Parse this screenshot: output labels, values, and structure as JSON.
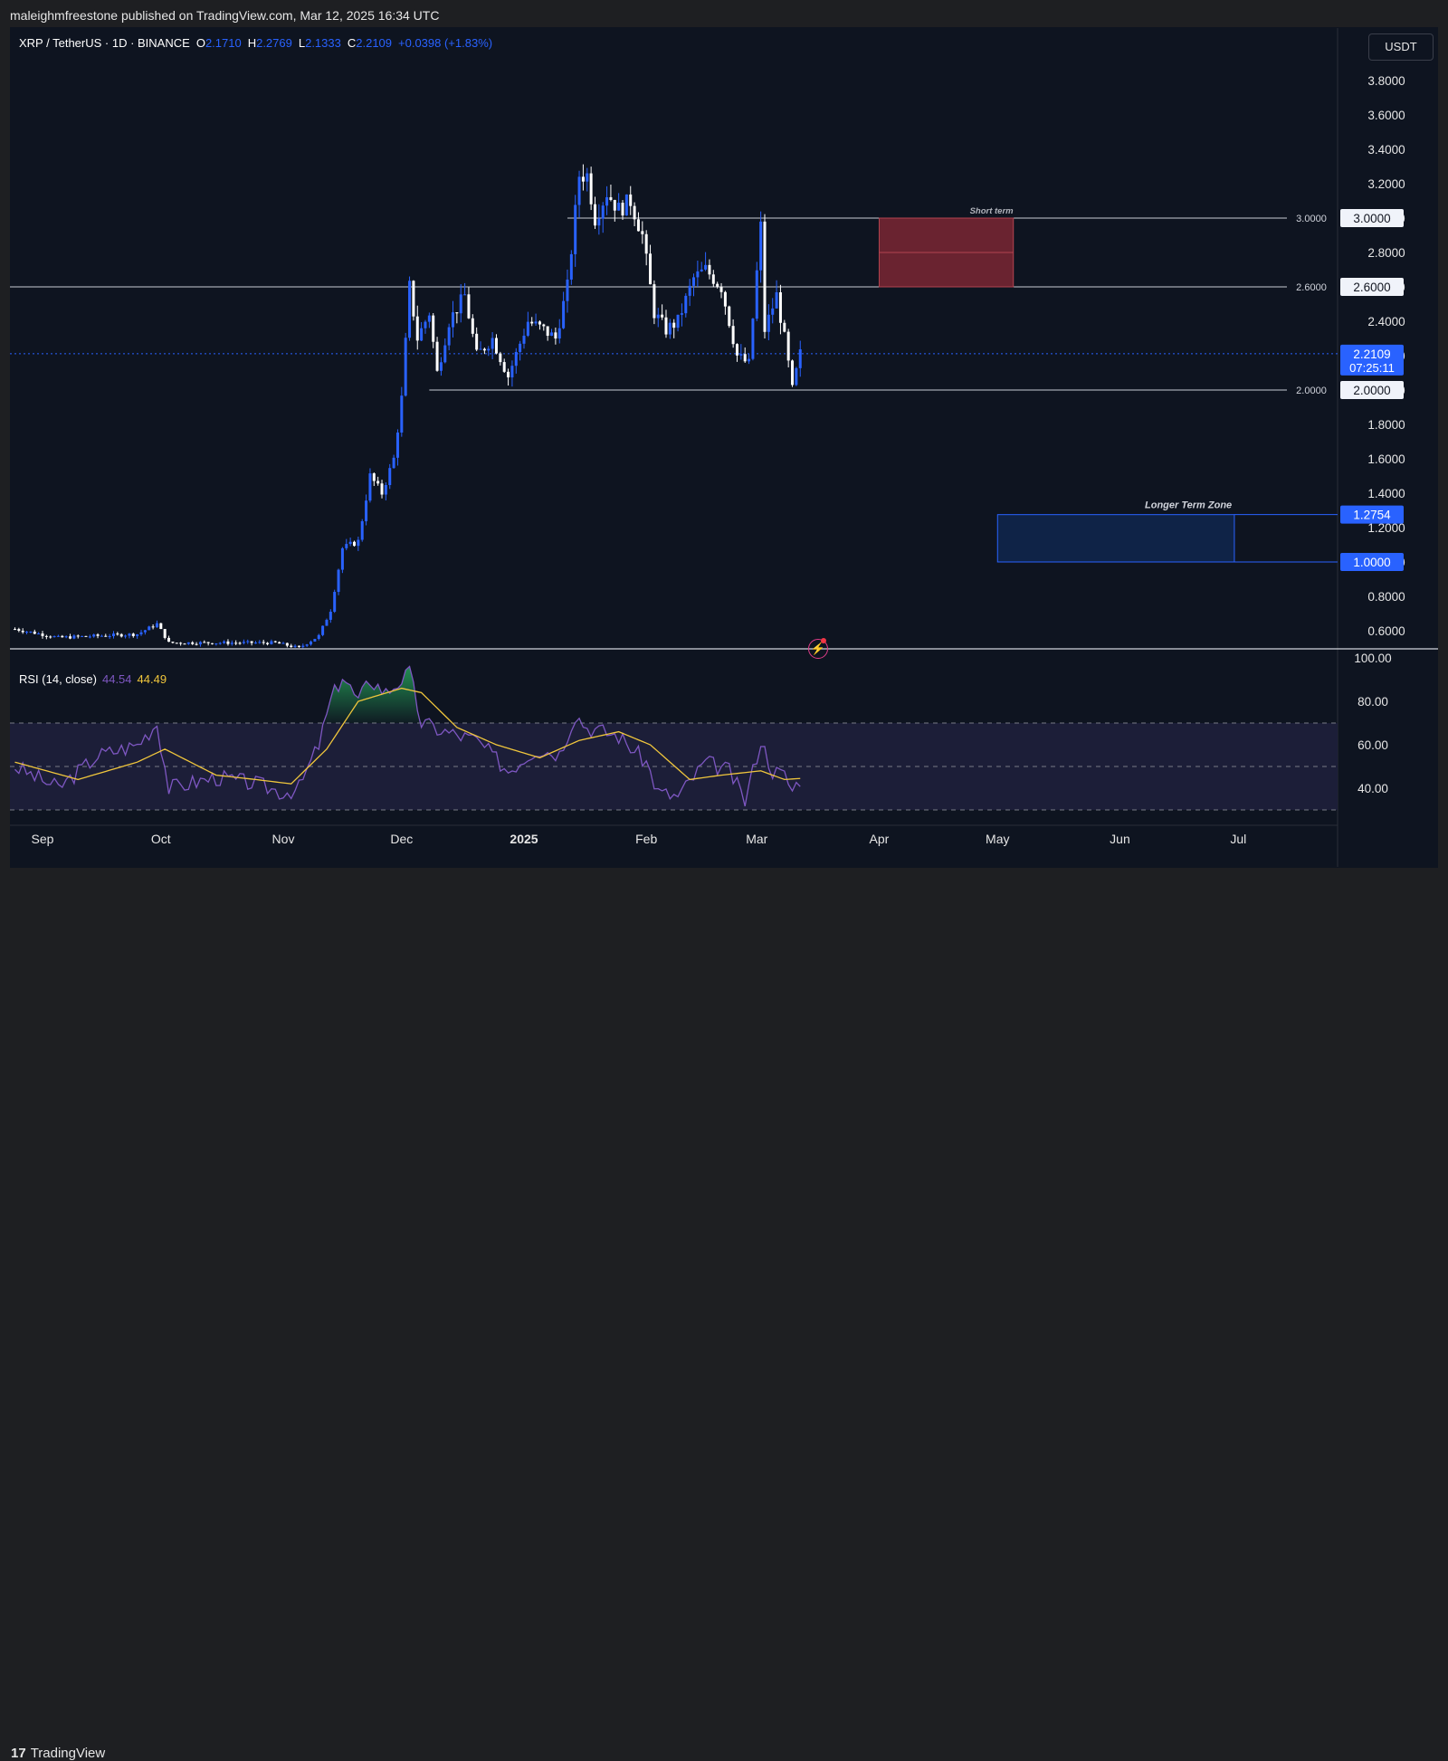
{
  "header": {
    "published_text": "maleighmfreestone published on TradingView.com, Mar 12, 2025 16:34 UTC"
  },
  "legend": {
    "symbol": "XRP / TetherUS · 1D · BINANCE",
    "open_label": "O",
    "open": "2.1710",
    "high_label": "H",
    "high": "2.2769",
    "low_label": "L",
    "low": "2.1333",
    "close_label": "C",
    "close": "2.2109",
    "change": "+0.0398 (+1.83%)"
  },
  "currency_button": "USDT",
  "rsi_legend": {
    "label": "RSI (14, close)",
    "rsi_value": "44.54",
    "ma_value": "44.49"
  },
  "footer": {
    "brand": "TradingView"
  },
  "icons": {
    "logo": "tradingview-logo-icon",
    "alert": "lightning-bolt-icon"
  },
  "colors": {
    "background": "#0e1420",
    "up_candle": "#2962ff",
    "down_candle": "#ffffff",
    "rsi_line": "#7e57c2",
    "rsi_ma": "#f0c63c",
    "short_zone": "#6a2330",
    "long_zone": "#0f2347"
  },
  "chart_data": [
    {
      "type": "candlestick",
      "title": "",
      "xlabel": "",
      "ylabel": "USDT",
      "ylim": [
        0.5,
        3.9
      ],
      "x_ticks": [
        "Sep",
        "Oct",
        "Nov",
        "Dec",
        "2025",
        "Feb",
        "Mar",
        "Apr",
        "May",
        "Jun",
        "Jul"
      ],
      "y_ticks": [
        "0.6000",
        "0.8000",
        "1.0000",
        "1.2000",
        "1.4000",
        "1.6000",
        "1.8000",
        "2.0000",
        "2.2000",
        "2.4000",
        "2.6000",
        "2.8000",
        "3.0000",
        "3.2000",
        "3.4000",
        "3.6000",
        "3.8000"
      ],
      "last_price": {
        "value": 2.2109,
        "label": "2.2109",
        "countdown": "07:25:11"
      },
      "horizontal_levels": [
        {
          "value": 3.0,
          "label": "3.0000",
          "axis_label": "3.0000"
        },
        {
          "value": 2.6,
          "label": "2.6000",
          "axis_label": "2.6000"
        },
        {
          "value": 2.0,
          "label": "2.0000",
          "axis_label": "2.0000"
        }
      ],
      "zones": [
        {
          "name": "Short term",
          "from_date": "2025-04-01",
          "to_date": "2025-05-05",
          "low": 2.6,
          "high": 3.0,
          "mid": 2.8
        },
        {
          "name": "Longer Term Zone",
          "from_date": "2025-05-01",
          "to_date": "2025-06-30",
          "low": 1.0,
          "high": 1.2754,
          "axis_labels": [
            "1.2754",
            "1.0000"
          ]
        }
      ],
      "ohlc_keyframes": [
        {
          "date": "2024-08-25",
          "close": 0.61
        },
        {
          "date": "2024-09-05",
          "close": 0.56
        },
        {
          "date": "2024-09-25",
          "close": 0.58
        },
        {
          "date": "2024-09-30",
          "close": 0.64
        },
        {
          "date": "2024-10-03",
          "close": 0.53
        },
        {
          "date": "2024-10-30",
          "close": 0.53
        },
        {
          "date": "2024-11-05",
          "close": 0.5
        },
        {
          "date": "2024-11-10",
          "close": 0.57
        },
        {
          "date": "2024-11-13",
          "close": 0.72
        },
        {
          "date": "2024-11-16",
          "close": 1.08
        },
        {
          "date": "2024-11-20",
          "close": 1.12
        },
        {
          "date": "2024-11-23",
          "close": 1.5
        },
        {
          "date": "2024-11-26",
          "close": 1.4
        },
        {
          "date": "2024-11-29",
          "close": 1.6
        },
        {
          "date": "2024-12-01",
          "close": 1.95
        },
        {
          "date": "2024-12-03",
          "close": 2.6
        },
        {
          "date": "2024-12-05",
          "close": 2.3
        },
        {
          "date": "2024-12-08",
          "close": 2.45
        },
        {
          "date": "2024-12-10",
          "close": 2.1
        },
        {
          "date": "2024-12-13",
          "close": 2.4
        },
        {
          "date": "2024-12-17",
          "close": 2.55
        },
        {
          "date": "2024-12-20",
          "close": 2.2
        },
        {
          "date": "2024-12-24",
          "close": 2.3
        },
        {
          "date": "2024-12-28",
          "close": 2.08
        },
        {
          "date": "2025-01-02",
          "close": 2.4
        },
        {
          "date": "2025-01-06",
          "close": 2.35
        },
        {
          "date": "2025-01-09",
          "close": 2.3
        },
        {
          "date": "2025-01-12",
          "close": 2.6
        },
        {
          "date": "2025-01-15",
          "close": 3.25
        },
        {
          "date": "2025-01-17",
          "close": 3.25
        },
        {
          "date": "2025-01-19",
          "close": 3.0
        },
        {
          "date": "2025-01-22",
          "close": 3.15
        },
        {
          "date": "2025-01-25",
          "close": 3.05
        },
        {
          "date": "2025-01-28",
          "close": 3.1
        },
        {
          "date": "2025-01-31",
          "close": 2.9
        },
        {
          "date": "2025-02-03",
          "close": 2.45
        },
        {
          "date": "2025-02-06",
          "close": 2.35
        },
        {
          "date": "2025-02-09",
          "close": 2.4
        },
        {
          "date": "2025-02-13",
          "close": 2.65
        },
        {
          "date": "2025-02-16",
          "close": 2.7
        },
        {
          "date": "2025-02-20",
          "close": 2.6
        },
        {
          "date": "2025-02-24",
          "close": 2.2
        },
        {
          "date": "2025-02-27",
          "close": 2.15
        },
        {
          "date": "2025-03-02",
          "close": 2.95
        },
        {
          "date": "2025-03-03",
          "close": 2.35
        },
        {
          "date": "2025-03-06",
          "close": 2.55
        },
        {
          "date": "2025-03-08",
          "close": 2.3
        },
        {
          "date": "2025-03-10",
          "close": 2.0
        },
        {
          "date": "2025-03-12",
          "close": 2.21
        }
      ]
    },
    {
      "type": "line",
      "title": "RSI (14, close)",
      "ylim": [
        30,
        100
      ],
      "y_ticks": [
        "40.00",
        "60.00",
        "80.00",
        "100.00"
      ],
      "bands": {
        "upper": 70,
        "middle": 50,
        "lower": 30
      },
      "series": [
        {
          "name": "RSI",
          "last": 44.54,
          "keyframes": [
            {
              "date": "2024-08-25",
              "value": 50
            },
            {
              "date": "2024-09-05",
              "value": 40
            },
            {
              "date": "2024-09-15",
              "value": 55
            },
            {
              "date": "2024-09-25",
              "value": 60
            },
            {
              "date": "2024-09-30",
              "value": 70
            },
            {
              "date": "2024-10-03",
              "value": 40
            },
            {
              "date": "2024-10-15",
              "value": 45
            },
            {
              "date": "2024-10-25",
              "value": 42
            },
            {
              "date": "2024-11-01",
              "value": 38
            },
            {
              "date": "2024-11-05",
              "value": 40
            },
            {
              "date": "2024-11-10",
              "value": 60
            },
            {
              "date": "2024-11-13",
              "value": 80
            },
            {
              "date": "2024-11-16",
              "value": 92
            },
            {
              "date": "2024-11-20",
              "value": 80
            },
            {
              "date": "2024-11-23",
              "value": 90
            },
            {
              "date": "2024-11-27",
              "value": 84
            },
            {
              "date": "2024-12-03",
              "value": 93
            },
            {
              "date": "2024-12-06",
              "value": 70
            },
            {
              "date": "2024-12-12",
              "value": 66
            },
            {
              "date": "2024-12-20",
              "value": 62
            },
            {
              "date": "2024-12-28",
              "value": 48
            },
            {
              "date": "2025-01-04",
              "value": 58
            },
            {
              "date": "2025-01-10",
              "value": 56
            },
            {
              "date": "2025-01-14",
              "value": 74
            },
            {
              "date": "2025-01-17",
              "value": 68
            },
            {
              "date": "2025-01-25",
              "value": 64
            },
            {
              "date": "2025-02-01",
              "value": 52
            },
            {
              "date": "2025-02-04",
              "value": 38
            },
            {
              "date": "2025-02-09",
              "value": 36
            },
            {
              "date": "2025-02-16",
              "value": 52
            },
            {
              "date": "2025-02-22",
              "value": 48
            },
            {
              "date": "2025-02-26",
              "value": 34
            },
            {
              "date": "2025-03-02",
              "value": 62
            },
            {
              "date": "2025-03-05",
              "value": 48
            },
            {
              "date": "2025-03-08",
              "value": 46
            },
            {
              "date": "2025-03-10",
              "value": 39
            },
            {
              "date": "2025-03-12",
              "value": 44.54
            }
          ]
        },
        {
          "name": "RSI-based MA",
          "last": 44.49,
          "keyframes": [
            {
              "date": "2024-08-25",
              "value": 52
            },
            {
              "date": "2024-09-10",
              "value": 44
            },
            {
              "date": "2024-09-25",
              "value": 52
            },
            {
              "date": "2024-10-02",
              "value": 58
            },
            {
              "date": "2024-10-15",
              "value": 46
            },
            {
              "date": "2024-10-25",
              "value": 44
            },
            {
              "date": "2024-11-03",
              "value": 42
            },
            {
              "date": "2024-11-12",
              "value": 58
            },
            {
              "date": "2024-11-20",
              "value": 80
            },
            {
              "date": "2024-12-01",
              "value": 86
            },
            {
              "date": "2024-12-06",
              "value": 84
            },
            {
              "date": "2024-12-15",
              "value": 68
            },
            {
              "date": "2024-12-25",
              "value": 60
            },
            {
              "date": "2025-01-05",
              "value": 54
            },
            {
              "date": "2025-01-15",
              "value": 62
            },
            {
              "date": "2025-01-25",
              "value": 66
            },
            {
              "date": "2025-02-02",
              "value": 60
            },
            {
              "date": "2025-02-12",
              "value": 44
            },
            {
              "date": "2025-02-20",
              "value": 46
            },
            {
              "date": "2025-03-02",
              "value": 48
            },
            {
              "date": "2025-03-08",
              "value": 44
            },
            {
              "date": "2025-03-12",
              "value": 44.49
            }
          ]
        }
      ]
    }
  ]
}
